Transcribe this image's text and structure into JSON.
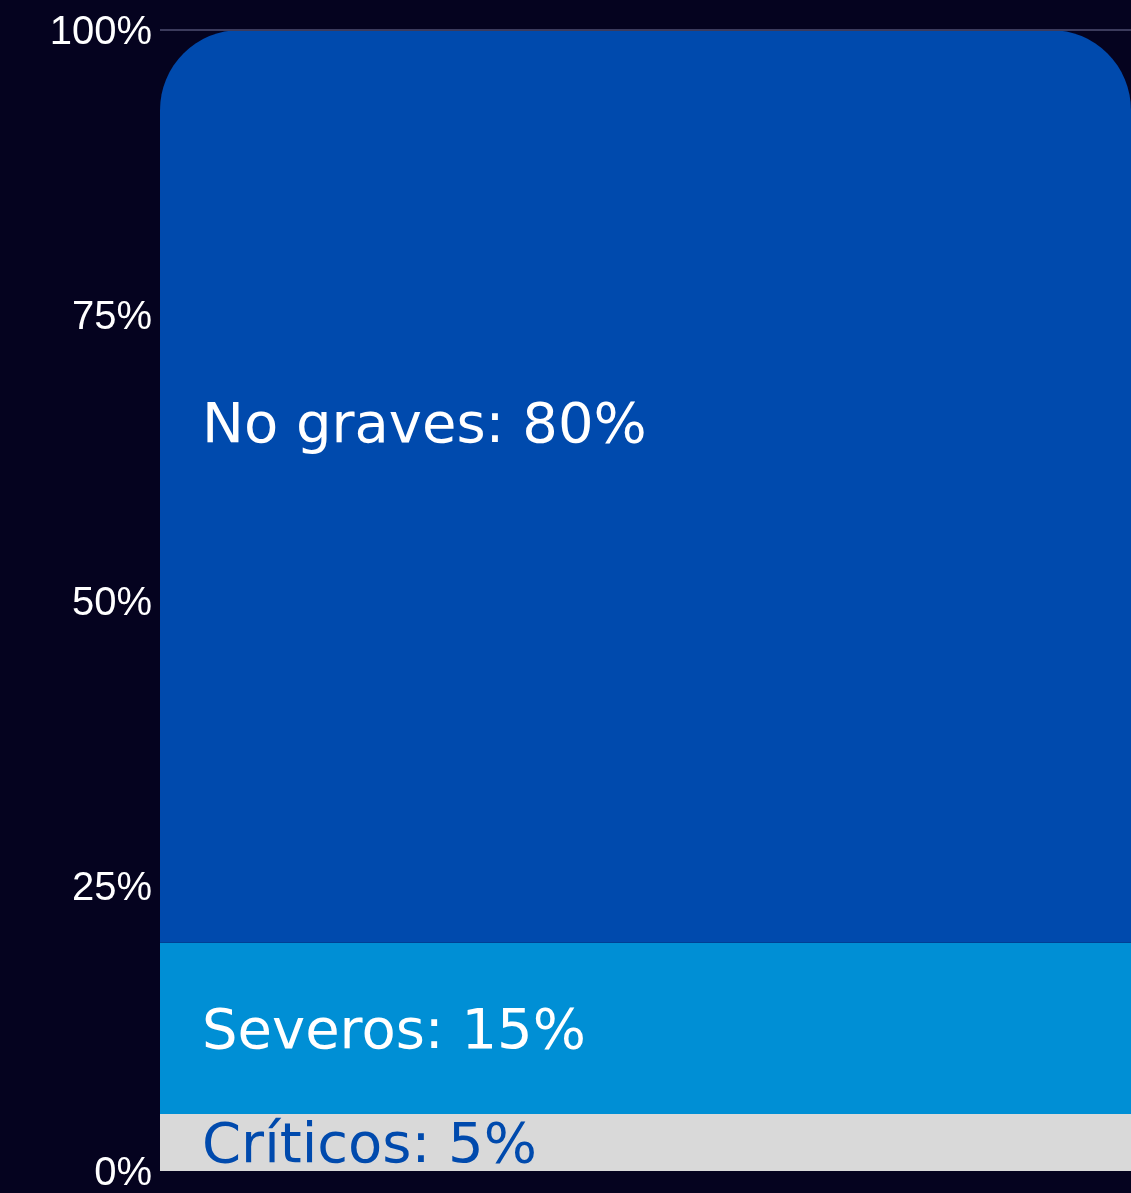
{
  "chart_data": {
    "type": "bar",
    "stacked": true,
    "categories": [
      null
    ],
    "series": [
      {
        "color": "#d9d9d9",
        "values": [
          5
        ],
        "value_labels": [
          "Críticos: 5%"
        ]
      },
      {
        "color": "#008fd5",
        "values": [
          15
        ],
        "value_labels": [
          "Severos: 15%"
        ]
      },
      {
        "color": "#004aad",
        "values": [
          80
        ],
        "value_labels": [
          "No graves: 80%"
        ]
      }
    ],
    "ylim": [
      0,
      100
    ],
    "yticks": [
      {
        "value": 0,
        "label": "0%"
      },
      {
        "value": 25,
        "label": "25%"
      },
      {
        "value": 50,
        "label": "50%"
      },
      {
        "value": 75,
        "label": "75%"
      },
      {
        "value": 100,
        "label": "100%"
      }
    ],
    "ref_lines": [
      {
        "axis": "y",
        "value": 100,
        "color": "#3c3b5c"
      }
    ],
    "tick_labels": "y"
  }
}
